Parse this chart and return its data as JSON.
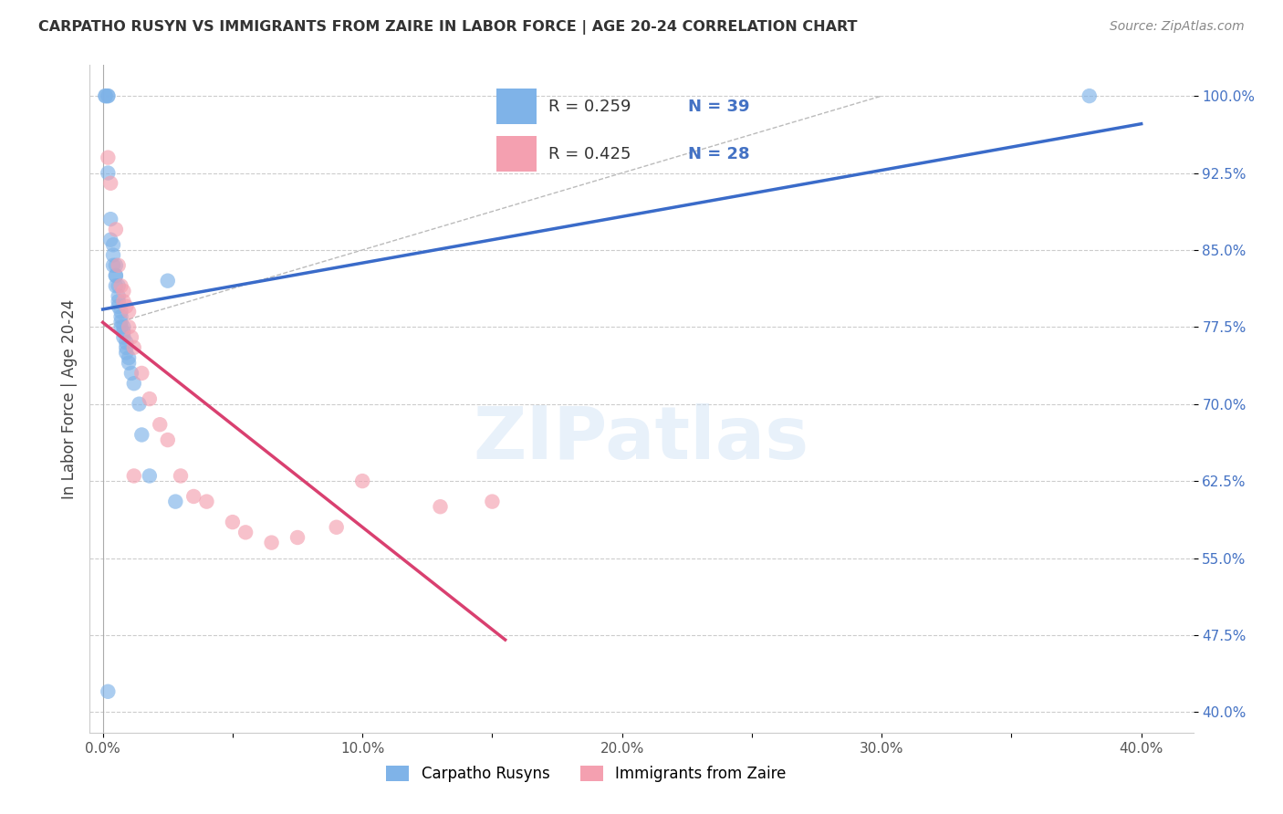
{
  "title": "CARPATHO RUSYN VS IMMIGRANTS FROM ZAIRE IN LABOR FORCE | AGE 20-24 CORRELATION CHART",
  "source": "Source: ZipAtlas.com",
  "ylabel": "In Labor Force | Age 20-24",
  "xlim": [
    -0.005,
    0.42
  ],
  "ylim": [
    0.38,
    1.03
  ],
  "ytick_positions": [
    0.4,
    0.475,
    0.55,
    0.625,
    0.7,
    0.775,
    0.85,
    0.925,
    1.0
  ],
  "ytick_labels": [
    "40.0%",
    "47.5%",
    "55.0%",
    "62.5%",
    "70.0%",
    "77.5%",
    "85.0%",
    "92.5%",
    "100.0%"
  ],
  "xtick_positions": [
    0.0,
    0.05,
    0.1,
    0.15,
    0.2,
    0.25,
    0.3,
    0.35,
    0.4
  ],
  "xtick_labels": [
    "0.0%",
    "",
    "10.0%",
    "",
    "20.0%",
    "",
    "30.0%",
    "",
    "40.0%"
  ],
  "grid_color": "#cccccc",
  "bg_color": "#ffffff",
  "blue_scatter_color": "#7fb3e8",
  "pink_scatter_color": "#f4a0b0",
  "blue_line_color": "#3a6bc9",
  "pink_line_color": "#d94070",
  "diag_color": "#bbbbbb",
  "legend_R_blue": "R = 0.259",
  "legend_N_blue": "N = 39",
  "legend_R_pink": "R = 0.425",
  "legend_N_pink": "N = 28",
  "watermark": "ZIPatlas",
  "blue_x": [
    0.001,
    0.001,
    0.002,
    0.002,
    0.002,
    0.003,
    0.003,
    0.004,
    0.004,
    0.004,
    0.005,
    0.005,
    0.005,
    0.005,
    0.006,
    0.006,
    0.006,
    0.006,
    0.007,
    0.007,
    0.007,
    0.007,
    0.008,
    0.008,
    0.008,
    0.009,
    0.009,
    0.009,
    0.01,
    0.01,
    0.011,
    0.012,
    0.014,
    0.015,
    0.018,
    0.025,
    0.028,
    0.002,
    0.38
  ],
  "blue_y": [
    1.0,
    1.0,
    1.0,
    1.0,
    0.925,
    0.88,
    0.86,
    0.855,
    0.845,
    0.835,
    0.835,
    0.825,
    0.825,
    0.815,
    0.815,
    0.805,
    0.8,
    0.795,
    0.79,
    0.785,
    0.78,
    0.775,
    0.775,
    0.77,
    0.765,
    0.76,
    0.755,
    0.75,
    0.745,
    0.74,
    0.73,
    0.72,
    0.7,
    0.67,
    0.63,
    0.82,
    0.605,
    0.42,
    1.0
  ],
  "pink_x": [
    0.002,
    0.003,
    0.005,
    0.006,
    0.007,
    0.008,
    0.008,
    0.009,
    0.01,
    0.01,
    0.011,
    0.012,
    0.015,
    0.018,
    0.022,
    0.025,
    0.03,
    0.035,
    0.04,
    0.05,
    0.055,
    0.065,
    0.075,
    0.09,
    0.1,
    0.13,
    0.15,
    0.012
  ],
  "pink_y": [
    0.94,
    0.915,
    0.87,
    0.835,
    0.815,
    0.81,
    0.8,
    0.795,
    0.79,
    0.775,
    0.765,
    0.755,
    0.73,
    0.705,
    0.68,
    0.665,
    0.63,
    0.61,
    0.605,
    0.585,
    0.575,
    0.565,
    0.57,
    0.58,
    0.625,
    0.6,
    0.605,
    0.63
  ]
}
